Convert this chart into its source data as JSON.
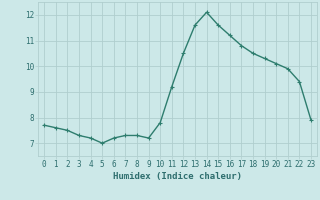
{
  "x": [
    0,
    1,
    2,
    3,
    4,
    5,
    6,
    7,
    8,
    9,
    10,
    11,
    12,
    13,
    14,
    15,
    16,
    17,
    18,
    19,
    20,
    21,
    22,
    23
  ],
  "y": [
    7.7,
    7.6,
    7.5,
    7.3,
    7.2,
    7.0,
    7.2,
    7.3,
    7.3,
    7.2,
    7.8,
    9.2,
    10.5,
    11.6,
    12.1,
    11.6,
    11.2,
    10.8,
    10.5,
    10.3,
    10.1,
    9.9,
    9.4,
    7.9
  ],
  "line_color": "#2e7d6e",
  "marker": "+",
  "marker_size": 3.5,
  "bg_color": "#cce8e8",
  "grid_color": "#b0cece",
  "xlabel": "Humidex (Indice chaleur)",
  "ylim": [
    6.5,
    12.5
  ],
  "xlim": [
    -0.5,
    23.5
  ],
  "yticks": [
    7,
    8,
    9,
    10,
    11,
    12
  ],
  "xticks": [
    0,
    1,
    2,
    3,
    4,
    5,
    6,
    7,
    8,
    9,
    10,
    11,
    12,
    13,
    14,
    15,
    16,
    17,
    18,
    19,
    20,
    21,
    22,
    23
  ],
  "text_color": "#2e6e6e",
  "xlabel_fontsize": 6.5,
  "tick_fontsize": 5.5,
  "linewidth": 1.0,
  "marker_linewidth": 0.8
}
